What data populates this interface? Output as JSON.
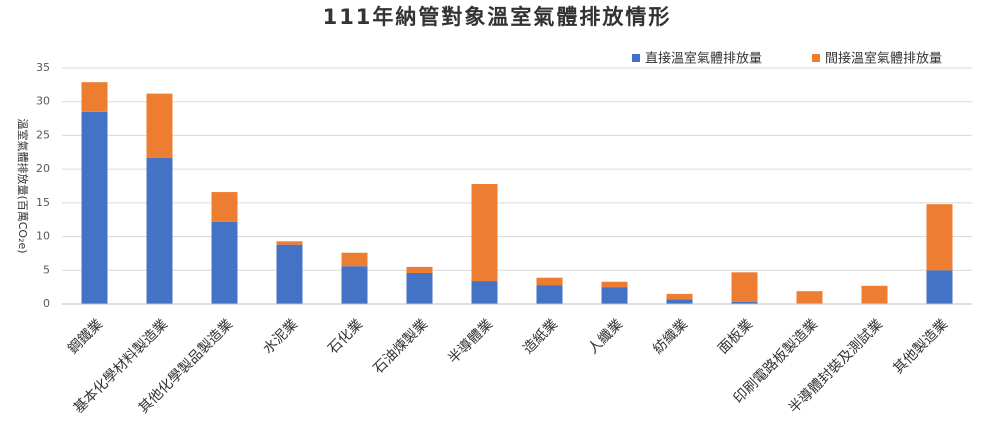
{
  "chart_data": {
    "type": "stacked_bar",
    "title": "111年納管對象溫室氣體排放情形",
    "y_label": "溫室氣體排放量(百萬CO₂e)",
    "categories": [
      "鋼鐵業",
      "基本化學材料製造業",
      "其他化學製品製造業",
      "水泥業",
      "石化業",
      "石油煉製業",
      "半導體業",
      "造紙業",
      "人纖業",
      "紡織業",
      "面板業",
      "印刷電路板製造業",
      "半導體封裝及測試業",
      "其他製造業"
    ],
    "series": [
      {
        "name": "直接溫室氣體排放量",
        "color": "#4472c4",
        "values": [
          28.5,
          21.7,
          12.2,
          8.8,
          5.6,
          4.6,
          3.4,
          2.8,
          2.5,
          0.7,
          0.3,
          0.1,
          0.1,
          5.0
        ]
      },
      {
        "name": "間接溫室氣體排放量",
        "color": "#ed7d31",
        "values": [
          4.4,
          9.5,
          4.4,
          0.5,
          2.0,
          0.9,
          14.4,
          1.1,
          0.8,
          0.8,
          4.4,
          1.8,
          2.6,
          9.8
        ]
      }
    ],
    "ylim": [
      0,
      35
    ],
    "yticks": [
      0,
      5,
      10,
      15,
      20,
      25,
      30,
      35
    ],
    "grid": true,
    "legend": "top-right"
  }
}
